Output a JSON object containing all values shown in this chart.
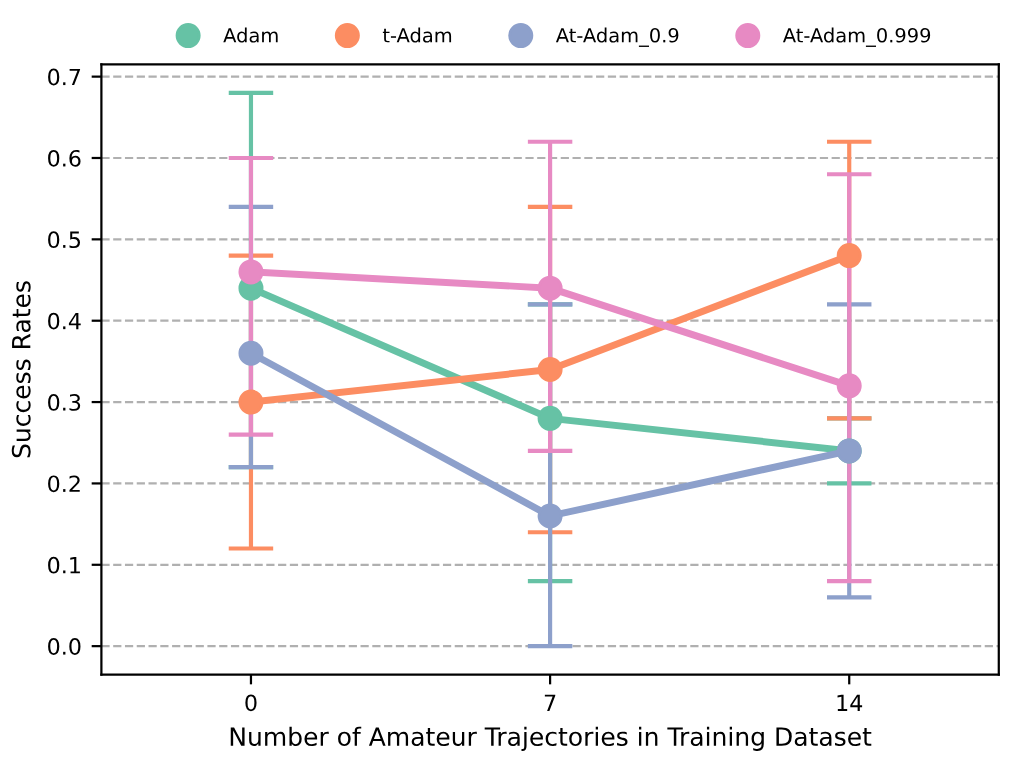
{
  "chart_data": {
    "type": "line",
    "xlabel": "Number of Amateur Trajectories in Training Dataset",
    "ylabel": "Success Rates",
    "categories": [
      "0",
      "7",
      "14"
    ],
    "series": [
      {
        "name": "Adam",
        "color": "#66c2a5",
        "values": [
          0.44,
          0.28,
          0.24
        ],
        "errors": [
          [
            0.22,
            0.68
          ],
          [
            0.08,
            0.42
          ],
          [
            0.2,
            0.28
          ]
        ]
      },
      {
        "name": "t-Adam",
        "color": "#fc8d62",
        "values": [
          0.3,
          0.34,
          0.48
        ],
        "errors": [
          [
            0.12,
            0.48
          ],
          [
            0.14,
            0.54
          ],
          [
            0.28,
            0.62
          ]
        ]
      },
      {
        "name": "At-Adam_0.9",
        "color": "#8da0cb",
        "values": [
          0.36,
          0.16,
          0.24
        ],
        "errors": [
          [
            0.22,
            0.54
          ],
          [
            0.0,
            0.42
          ],
          [
            0.06,
            0.42
          ]
        ]
      },
      {
        "name": "At-Adam_0.999",
        "color": "#e78ac3",
        "values": [
          0.46,
          0.44,
          0.32
        ],
        "errors": [
          [
            0.26,
            0.6
          ],
          [
            0.24,
            0.62
          ],
          [
            0.08,
            0.58
          ]
        ]
      }
    ],
    "ylim": [
      -0.035,
      0.715
    ],
    "yticks": [
      {
        "value": 0,
        "label": "0.0"
      },
      0.1,
      0.2,
      0.3,
      0.4,
      0.5,
      0.6,
      0.7
    ],
    "grid": "y",
    "legend": "top",
    "marker": "circle",
    "line_style": "solid"
  }
}
